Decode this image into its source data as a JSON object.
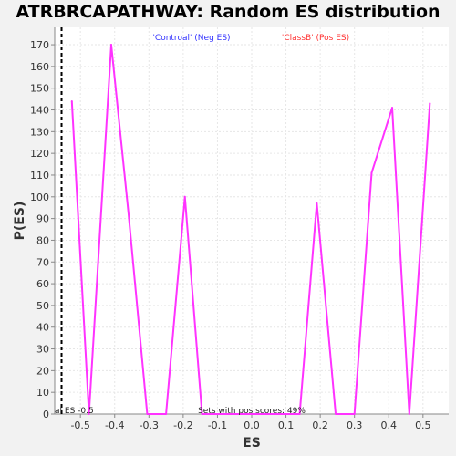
{
  "chart_data": {
    "type": "line",
    "title": "ATRBRCAPATHWAY: Random ES distribution",
    "xlabel": "ES",
    "ylabel": "P(ES)",
    "xlim": [
      -0.575,
      0.575
    ],
    "ylim": [
      0,
      178
    ],
    "xticks": [
      -0.5,
      -0.4,
      -0.3,
      -0.2,
      -0.1,
      0.0,
      0.1,
      0.2,
      0.3,
      0.4,
      0.5
    ],
    "xtick_labels": [
      "-0.5",
      "-0.4",
      "-0.3",
      "-0.2",
      "-0.1",
      "0.0",
      "0.1",
      "0.2",
      "0.3",
      "0.4",
      "0.5"
    ],
    "yticks": [
      0,
      10,
      20,
      30,
      40,
      50,
      60,
      70,
      80,
      90,
      100,
      110,
      120,
      130,
      140,
      150,
      160,
      170
    ],
    "ytick_labels": [
      "0",
      "10",
      "20",
      "30",
      "40",
      "50",
      "60",
      "70",
      "80",
      "90",
      "100",
      "110",
      "120",
      "130",
      "140",
      "150",
      "160",
      "170"
    ],
    "grid": true,
    "series": [
      {
        "color": "#ff33ff",
        "x": [
          -0.525,
          -0.475,
          -0.41,
          -0.36,
          -0.305,
          -0.25,
          -0.195,
          -0.145,
          0.14,
          0.19,
          0.245,
          0.3,
          0.35,
          0.41,
          0.46,
          0.52
        ],
        "y": [
          144,
          0,
          170,
          93,
          0,
          0,
          100,
          0,
          0,
          97,
          0,
          0,
          111,
          141,
          0,
          143
        ]
      }
    ],
    "legend": [
      {
        "text": "'Controal' (Neg ES)",
        "color": "#3333ff"
      },
      {
        "text": "'ClassB' (Pos ES)",
        "color": "#ff3333"
      }
    ],
    "legend_placement": "top",
    "reference_line": {
      "x": -0.555,
      "style": "dashed",
      "color": "#000000"
    },
    "annotations": {
      "observed": "al ES -0.5",
      "pos_scores": "Sets with pos scores: 49%"
    }
  }
}
